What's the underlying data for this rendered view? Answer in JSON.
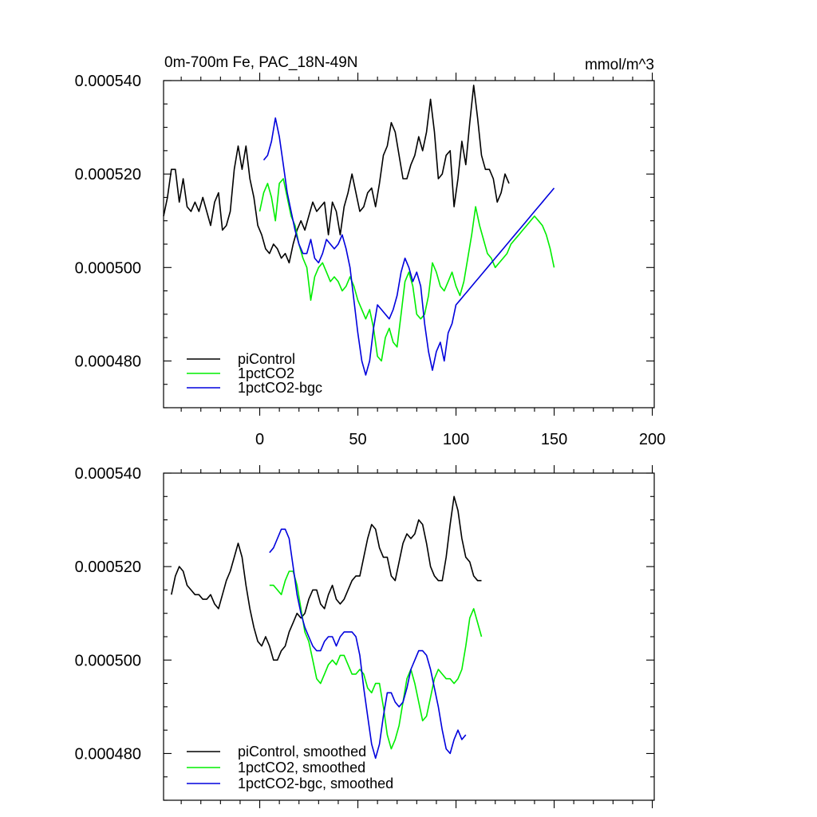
{
  "chart_data": [
    {
      "type": "line",
      "title": "0m-700m Fe, PAC_18N-49N",
      "units": "mmol/m^3",
      "xlabel": "",
      "ylabel": "",
      "xlim": [
        -49,
        201
      ],
      "ylim": [
        0.00047,
        0.00054
      ],
      "x_ticks": [
        0,
        50,
        100,
        150,
        200
      ],
      "x_tick_labels": [
        "0",
        "50",
        "100",
        "150",
        "200"
      ],
      "y_ticks": [
        0.00048,
        0.0005,
        0.00052,
        0.00054
      ],
      "y_tick_labels": [
        "0.000480",
        "0.000500",
        "0.000520",
        "0.000540"
      ],
      "legend_position": "bottom-left",
      "series": [
        {
          "name": "piControl",
          "color": "#000000",
          "x_start": -49,
          "x_step": 2,
          "values": [
            0.000511,
            0.000515,
            0.000521,
            0.000521,
            0.000514,
            0.000519,
            0.000513,
            0.000512,
            0.000514,
            0.000512,
            0.000515,
            0.000512,
            0.000509,
            0.000514,
            0.000516,
            0.000508,
            0.000509,
            0.000512,
            0.000521,
            0.000526,
            0.000521,
            0.000526,
            0.000519,
            0.000515,
            0.000509,
            0.000507,
            0.000504,
            0.000503,
            0.000505,
            0.000504,
            0.000502,
            0.000503,
            0.000501,
            0.000505,
            0.000508,
            0.00051,
            0.000508,
            0.000511,
            0.000514,
            0.000512,
            0.000513,
            0.000514,
            0.000507,
            0.000514,
            0.000512,
            0.000507,
            0.000513,
            0.000516,
            0.00052,
            0.000516,
            0.000512,
            0.000513,
            0.000516,
            0.000517,
            0.000513,
            0.000518,
            0.000524,
            0.000526,
            0.000531,
            0.000529,
            0.000524,
            0.000519,
            0.000519,
            0.000522,
            0.000524,
            0.000528,
            0.000525,
            0.000529,
            0.000536,
            0.000529,
            0.000519,
            0.00052,
            0.000524,
            0.000525,
            0.000513,
            0.000519,
            0.000527,
            0.000522,
            0.000531,
            0.000539,
            0.000532,
            0.000524,
            0.000521,
            0.000521,
            0.000519,
            0.000514,
            0.000516,
            0.00052,
            0.000518
          ]
        },
        {
          "name": "1pctCO2",
          "color": "#00ee00",
          "x_start": 0,
          "x_step": 2,
          "values": [
            0.000512,
            0.000516,
            0.000518,
            0.000515,
            0.00051,
            0.000518,
            0.000519,
            0.000515,
            0.000511,
            0.000509,
            0.000505,
            0.000502,
            0.0005,
            0.000493,
            0.000498,
            0.0005,
            0.000501,
            0.000499,
            0.000497,
            0.000498,
            0.000497,
            0.000495,
            0.000496,
            0.000498,
            0.000496,
            0.000493,
            0.000491,
            0.000489,
            0.000491,
            0.000487,
            0.000481,
            0.00048,
            0.000485,
            0.000487,
            0.000484,
            0.000483,
            0.00049,
            0.000497,
            0.000499,
            0.000496,
            0.00049,
            0.000489,
            0.00049,
            0.000494,
            0.000501,
            0.000499,
            0.000496,
            0.000495,
            0.000497,
            0.000499,
            0.000496,
            0.000494,
            0.000497,
            0.000502,
            0.000507,
            0.000513,
            0.000509,
            0.000506,
            0.000503,
            0.000502,
            0.0005,
            0.000501,
            0.000502,
            0.000503,
            0.000505,
            0.000506,
            0.000507,
            0.000508,
            0.000509,
            0.00051,
            0.000511,
            0.00051,
            0.000509,
            0.000507,
            0.000504,
            0.0005
          ]
        },
        {
          "name": "1pctCO2-bgc",
          "color": "#0000dd",
          "x_start": 2,
          "x_step": 2,
          "values": [
            0.000523,
            0.000524,
            0.000527,
            0.000532,
            0.000528,
            0.000522,
            0.000516,
            0.000512,
            0.000508,
            0.000505,
            0.000503,
            0.000503,
            0.000506,
            0.000502,
            0.000501,
            0.000503,
            0.000506,
            0.000505,
            0.000504,
            0.000505,
            0.000507,
            0.000504,
            0.0005,
            0.000493,
            0.000486,
            0.00048,
            0.000477,
            0.00048,
            0.000487,
            0.000492,
            0.000491,
            0.00049,
            0.000489,
            0.000491,
            0.000494,
            0.000499,
            0.000502,
            0.0005,
            0.000497,
            0.000499,
            0.000496,
            0.000488,
            0.000482,
            0.000478,
            0.000482,
            0.000484,
            0.00048,
            0.000486,
            0.000488,
            0.000492,
            0.000493,
            0.000494,
            0.000495,
            0.000496,
            0.000497,
            0.000498,
            0.000499,
            0.0005,
            0.000501,
            0.000502,
            0.000503,
            0.000504,
            0.000505,
            0.000506,
            0.000507,
            0.000508,
            0.000509,
            0.00051,
            0.000511,
            0.000512,
            0.000513,
            0.000514,
            0.000515,
            0.000516,
            0.000517
          ]
        }
      ]
    },
    {
      "type": "line",
      "title": "",
      "xlim": [
        -49,
        201
      ],
      "ylim": [
        0.00047,
        0.00054
      ],
      "x_ticks": [
        0,
        50,
        100,
        150,
        200
      ],
      "y_ticks": [
        0.00048,
        0.0005,
        0.00052,
        0.00054
      ],
      "y_tick_labels": [
        "0.000480",
        "0.000500",
        "0.000520",
        "0.000540"
      ],
      "legend_position": "bottom-left",
      "series": [
        {
          "name": "piControl, smoothed",
          "color": "#000000",
          "x_start": -45,
          "x_step": 2,
          "values": [
            0.000514,
            0.000518,
            0.00052,
            0.000519,
            0.000516,
            0.000515,
            0.000514,
            0.000514,
            0.000513,
            0.000513,
            0.000514,
            0.000512,
            0.000511,
            0.000514,
            0.000517,
            0.000519,
            0.000522,
            0.000525,
            0.000522,
            0.000516,
            0.000511,
            0.000507,
            0.000504,
            0.000503,
            0.000505,
            0.000503,
            0.0005,
            0.0005,
            0.000502,
            0.000503,
            0.000506,
            0.000508,
            0.00051,
            0.000509,
            0.00051,
            0.000513,
            0.000515,
            0.000515,
            0.000512,
            0.000511,
            0.000514,
            0.000516,
            0.000513,
            0.000512,
            0.000513,
            0.000515,
            0.000517,
            0.000518,
            0.000518,
            0.000522,
            0.000526,
            0.000529,
            0.000528,
            0.000524,
            0.000522,
            0.000522,
            0.000518,
            0.000517,
            0.000521,
            0.000525,
            0.000527,
            0.000526,
            0.000527,
            0.00053,
            0.000529,
            0.000525,
            0.00052,
            0.000518,
            0.000517,
            0.000517,
            0.000522,
            0.000529,
            0.000535,
            0.000532,
            0.000526,
            0.000522,
            0.000521,
            0.000518,
            0.000517,
            0.000517
          ]
        },
        {
          "name": "1pctCO2, smoothed",
          "color": "#00ee00",
          "x_start": 5,
          "x_step": 2,
          "values": [
            0.000516,
            0.000516,
            0.000515,
            0.000514,
            0.000517,
            0.000519,
            0.000519,
            0.000516,
            0.000511,
            0.000506,
            0.000504,
            0.0005,
            0.000496,
            0.000495,
            0.000497,
            0.000499,
            0.0005,
            0.000499,
            0.000501,
            0.000501,
            0.000499,
            0.000497,
            0.000497,
            0.000498,
            0.000497,
            0.000494,
            0.000493,
            0.000495,
            0.000495,
            0.00049,
            0.000484,
            0.000481,
            0.000483,
            0.000486,
            0.000491,
            0.000496,
            0.000498,
            0.000495,
            0.000491,
            0.000487,
            0.000488,
            0.000492,
            0.000496,
            0.000498,
            0.000497,
            0.000496,
            0.000496,
            0.000495,
            0.000496,
            0.000498,
            0.000503,
            0.000509,
            0.000511,
            0.000508,
            0.000505
          ]
        },
        {
          "name": "1pctCO2-bgc, smoothed",
          "color": "#0000dd",
          "x_start": 5,
          "x_step": 2,
          "values": [
            0.000523,
            0.000524,
            0.000526,
            0.000528,
            0.000528,
            0.000526,
            0.00052,
            0.000514,
            0.00051,
            0.000507,
            0.000505,
            0.000503,
            0.000502,
            0.000502,
            0.000504,
            0.000505,
            0.000505,
            0.000503,
            0.000505,
            0.000506,
            0.000506,
            0.000506,
            0.000505,
            0.000501,
            0.000494,
            0.000488,
            0.000482,
            0.000479,
            0.000482,
            0.000488,
            0.000493,
            0.000493,
            0.000491,
            0.00049,
            0.000491,
            0.000494,
            0.000498,
            0.0005,
            0.000502,
            0.000502,
            0.000501,
            0.000498,
            0.000494,
            0.00049,
            0.000485,
            0.000481,
            0.00048,
            0.000483,
            0.000485,
            0.000483,
            0.000484
          ]
        }
      ]
    }
  ]
}
